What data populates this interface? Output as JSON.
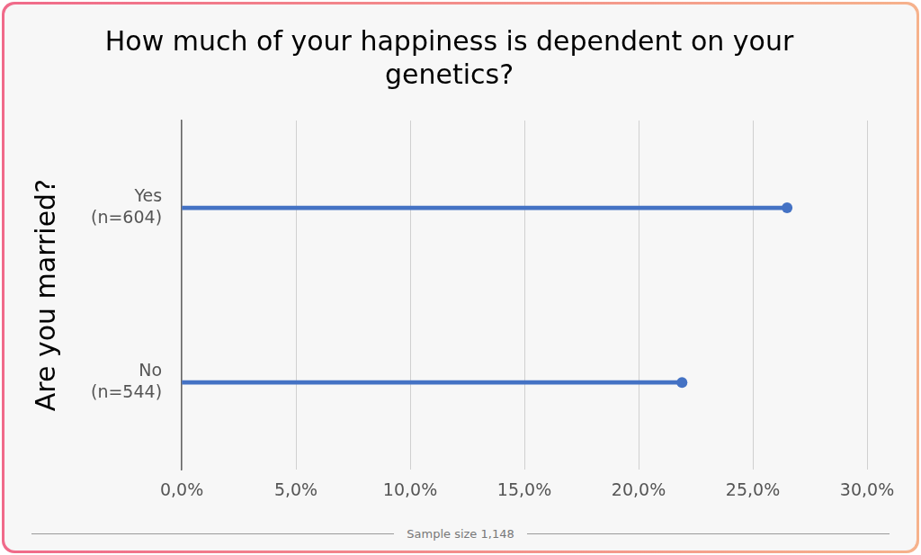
{
  "chart_data": {
    "type": "lollipop",
    "title": "How much of your happiness is dependent on your genetics?",
    "y_label": "Are you married?",
    "categories": [
      "Yes (n=604)",
      "No (n=544)"
    ],
    "values": [
      26.5,
      21.9
    ],
    "color": "#4472c4",
    "orientation": "horizontal",
    "xlim": [
      0,
      30
    ],
    "xticks": [
      {
        "value": 0,
        "label": "0,0%"
      },
      {
        "value": 5,
        "label": "5,0%"
      },
      {
        "value": 10,
        "label": "10,0%"
      },
      {
        "value": 15,
        "label": "15,0%"
      },
      {
        "value": 20,
        "label": "20,0%"
      },
      {
        "value": 25,
        "label": "25,0%"
      },
      {
        "value": 30,
        "label": "30,0%"
      }
    ],
    "grid": true,
    "annotation": "Sample size 1,148"
  }
}
